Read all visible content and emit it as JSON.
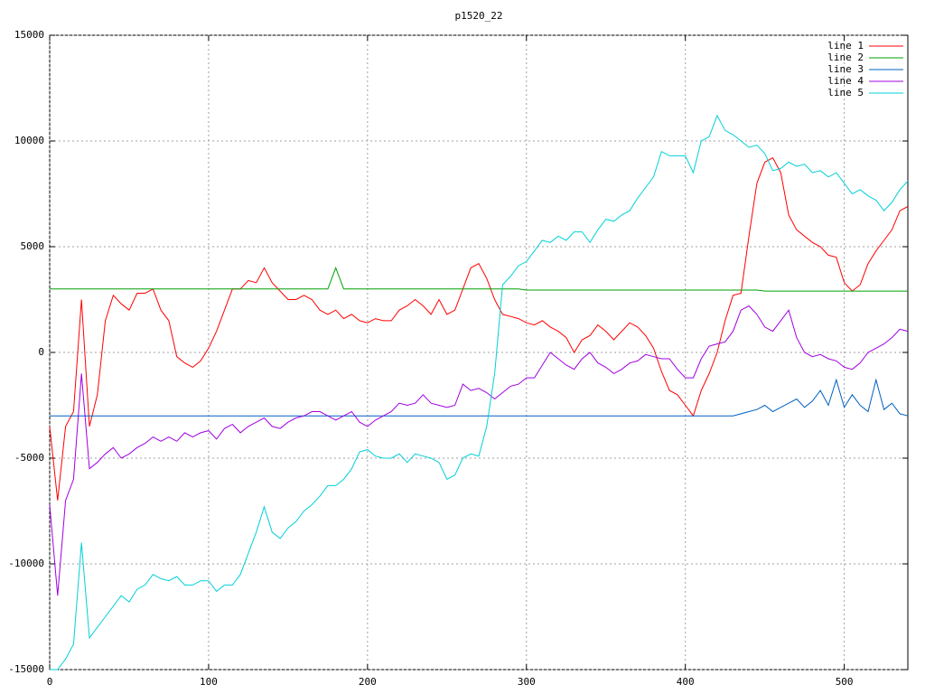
{
  "chart_data": {
    "type": "line",
    "title": "p1520_22",
    "x": [
      0,
      5,
      10,
      15,
      20,
      25,
      30,
      35,
      40,
      45,
      50,
      55,
      60,
      65,
      70,
      75,
      80,
      85,
      90,
      95,
      100,
      105,
      110,
      115,
      120,
      125,
      130,
      135,
      140,
      145,
      150,
      155,
      160,
      165,
      170,
      175,
      180,
      185,
      190,
      195,
      200,
      205,
      210,
      215,
      220,
      225,
      230,
      235,
      240,
      245,
      250,
      255,
      260,
      265,
      270,
      275,
      280,
      285,
      290,
      295,
      300,
      305,
      310,
      315,
      320,
      325,
      330,
      335,
      340,
      345,
      350,
      355,
      360,
      365,
      370,
      375,
      380,
      385,
      390,
      395,
      400,
      405,
      410,
      415,
      420,
      425,
      430,
      435,
      440,
      445,
      450,
      455,
      460,
      465,
      470,
      475,
      480,
      485,
      490,
      495,
      500,
      505,
      510,
      515,
      520,
      525,
      530,
      535,
      540
    ],
    "series": [
      {
        "name": "line 1",
        "color": "#ff0000",
        "values": [
          -3500,
          -7000,
          -3500,
          -2800,
          2500,
          -3500,
          -2000,
          1500,
          2700,
          2300,
          2000,
          2800,
          2800,
          3000,
          2000,
          1500,
          -200,
          -500,
          -700,
          -400,
          200,
          1000,
          2000,
          3000,
          3000,
          3400,
          3300,
          4000,
          3300,
          2900,
          2500,
          2500,
          2700,
          2500,
          2000,
          1800,
          2000,
          1600,
          1800,
          1500,
          1400,
          1600,
          1500,
          1500,
          2000,
          2200,
          2500,
          2200,
          1800,
          2500,
          1800,
          2000,
          3000,
          4000,
          4200,
          3500,
          2500,
          1800,
          1700,
          1600,
          1400,
          1300,
          1500,
          1200,
          1000,
          700,
          0,
          600,
          800,
          1300,
          1000,
          600,
          1000,
          1400,
          1200,
          800,
          200,
          -900,
          -1800,
          -2000,
          -2500,
          -3000,
          -1800,
          -1000,
          0,
          1500,
          2700,
          2800,
          5500,
          8000,
          9000,
          9200,
          8500,
          6500,
          5800,
          5500,
          5200,
          5000,
          4600,
          4500,
          3300,
          2900,
          3200,
          4200,
          4800,
          5300,
          5800,
          6700,
          6900
        ]
      },
      {
        "name": "line 2",
        "color": "#00a000",
        "values": [
          3000,
          3000,
          3000,
          3000,
          3000,
          3000,
          3000,
          3000,
          3000,
          3000,
          3000,
          3000,
          3000,
          3000,
          3000,
          3000,
          3000,
          3000,
          3000,
          3000,
          3000,
          3000,
          3000,
          3000,
          3000,
          3000,
          3000,
          3000,
          3000,
          3000,
          3000,
          3000,
          3000,
          3000,
          3000,
          3000,
          4000,
          3000,
          3000,
          3000,
          3000,
          3000,
          3000,
          3000,
          3000,
          3000,
          3000,
          3000,
          3000,
          3000,
          3000,
          3000,
          3000,
          3000,
          3000,
          3000,
          3000,
          3000,
          3000,
          3000,
          2950,
          2950,
          2950,
          2950,
          2950,
          2950,
          2950,
          2950,
          2950,
          2950,
          2950,
          2950,
          2950,
          2950,
          2950,
          2950,
          2950,
          2950,
          2950,
          2950,
          2950,
          2950,
          2950,
          2950,
          2950,
          2950,
          2950,
          2950,
          2950,
          2950,
          2900,
          2900,
          2900,
          2900,
          2900,
          2900,
          2900,
          2900,
          2900,
          2900,
          2900,
          2900,
          2900,
          2900,
          2900,
          2900,
          2900,
          2900,
          2900
        ]
      },
      {
        "name": "line 3",
        "color": "#0060c0",
        "values": [
          -3000,
          -3000,
          -3000,
          -3000,
          -3000,
          -3000,
          -3000,
          -3000,
          -3000,
          -3000,
          -3000,
          -3000,
          -3000,
          -3000,
          -3000,
          -3000,
          -3000,
          -3000,
          -3000,
          -3000,
          -3000,
          -3000,
          -3000,
          -3000,
          -3000,
          -3000,
          -3000,
          -3000,
          -3000,
          -3000,
          -3000,
          -3000,
          -3000,
          -3000,
          -3000,
          -3000,
          -3000,
          -3000,
          -3000,
          -3000,
          -3000,
          -3000,
          -3000,
          -3000,
          -3000,
          -3000,
          -3000,
          -3000,
          -3000,
          -3000,
          -3000,
          -3000,
          -3000,
          -3000,
          -3000,
          -3000,
          -3000,
          -3000,
          -3000,
          -3000,
          -3000,
          -3000,
          -3000,
          -3000,
          -3000,
          -3000,
          -3000,
          -3000,
          -3000,
          -3000,
          -3000,
          -3000,
          -3000,
          -3000,
          -3000,
          -3000,
          -3000,
          -3000,
          -3000,
          -3000,
          -3000,
          -3000,
          -3000,
          -3000,
          -3000,
          -3000,
          -3000,
          -2900,
          -2800,
          -2700,
          -2500,
          -2800,
          -2600,
          -2400,
          -2200,
          -2600,
          -2300,
          -1800,
          -2500,
          -1300,
          -2600,
          -2000,
          -2500,
          -2800,
          -1300,
          -2700,
          -2400,
          -2900,
          -3000
        ]
      },
      {
        "name": "line 4",
        "color": "#a000e0",
        "values": [
          -7200,
          -11500,
          -7000,
          -6000,
          -1000,
          -5500,
          -5200,
          -4800,
          -4500,
          -5000,
          -4800,
          -4500,
          -4300,
          -4000,
          -4200,
          -4000,
          -4200,
          -3800,
          -4000,
          -3800,
          -3700,
          -4100,
          -3600,
          -3400,
          -3800,
          -3500,
          -3300,
          -3100,
          -3500,
          -3600,
          -3300,
          -3100,
          -3000,
          -2800,
          -2800,
          -3000,
          -3200,
          -3000,
          -2800,
          -3300,
          -3500,
          -3200,
          -3000,
          -2800,
          -2400,
          -2500,
          -2400,
          -2000,
          -2400,
          -2500,
          -2600,
          -2500,
          -1500,
          -1800,
          -1700,
          -1900,
          -2200,
          -1900,
          -1600,
          -1500,
          -1200,
          -1200,
          -600,
          0,
          -300,
          -600,
          -800,
          -300,
          0,
          -500,
          -700,
          -1000,
          -800,
          -500,
          -400,
          -100,
          -200,
          -300,
          -300,
          -800,
          -1200,
          -1200,
          -300,
          300,
          400,
          500,
          1000,
          2000,
          2200,
          1800,
          1200,
          1000,
          1500,
          2000,
          700,
          0,
          -200,
          -100,
          -300,
          -400,
          -700,
          -800,
          -500,
          0,
          200,
          400,
          700,
          1100,
          1000
        ]
      },
      {
        "name": "line 5",
        "color": "#00d0d8",
        "values": [
          -15000,
          -15000,
          -14500,
          -13800,
          -9000,
          -13500,
          -13000,
          -12500,
          -12000,
          -11500,
          -11800,
          -11200,
          -11000,
          -10500,
          -10700,
          -10800,
          -10600,
          -11000,
          -11000,
          -10800,
          -10800,
          -11300,
          -11000,
          -11000,
          -10500,
          -9500,
          -8500,
          -7300,
          -8500,
          -8800,
          -8300,
          -8000,
          -7500,
          -7200,
          -6800,
          -6300,
          -6300,
          -6000,
          -5500,
          -4700,
          -4600,
          -4900,
          -5000,
          -5000,
          -4800,
          -5200,
          -4800,
          -4900,
          -5000,
          -5200,
          -6000,
          -5800,
          -5000,
          -4800,
          -4900,
          -3500,
          -1000,
          3200,
          3600,
          4100,
          4300,
          4800,
          5300,
          5200,
          5500,
          5300,
          5700,
          5700,
          5200,
          5800,
          6300,
          6200,
          6500,
          6700,
          7300,
          7800,
          8300,
          9500,
          9300,
          9300,
          9300,
          8500,
          10000,
          10200,
          11200,
          10500,
          10300,
          10000,
          9700,
          9800,
          9400,
          8600,
          8700,
          9000,
          8800,
          8900,
          8500,
          8600,
          8300,
          8500,
          8000,
          7500,
          7700,
          7400,
          7200,
          6700,
          7100,
          7700,
          8100
        ]
      }
    ],
    "xlim": [
      0,
      540
    ],
    "xticks": [
      0,
      100,
      200,
      300,
      400,
      500
    ],
    "ylim": [
      -15000,
      15000
    ],
    "yticks": [
      -15000,
      -10000,
      -5000,
      0,
      5000,
      10000,
      15000
    ],
    "grid": true,
    "legend": "top-right"
  }
}
